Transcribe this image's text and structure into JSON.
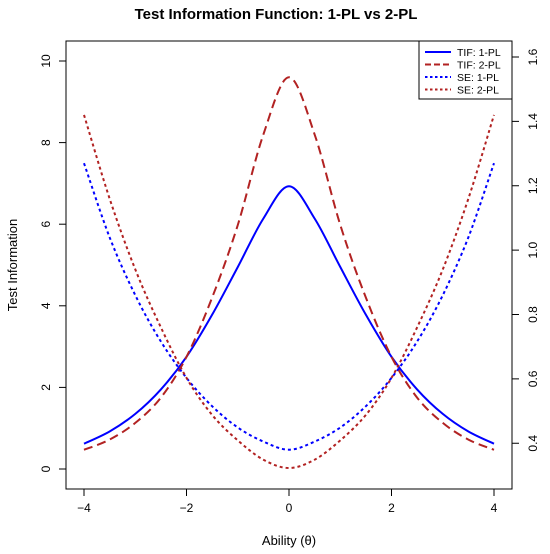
{
  "chart_data": {
    "type": "line",
    "title": "Test Information Function: 1-PL vs 2-PL",
    "xlabel": "Ability (θ)",
    "ylabel": "Test Information",
    "xlim": [
      -4,
      4
    ],
    "ylim": [
      0,
      10
    ],
    "y2lim": [
      0.32,
      1.6
    ],
    "x_ticks": [
      -4,
      -2,
      0,
      2,
      4
    ],
    "x_tick_labels": [
      "−4",
      "−2",
      "0",
      "2",
      "4"
    ],
    "y_ticks": [
      0,
      2,
      4,
      6,
      8,
      10
    ],
    "y2_ticks": [
      0.4,
      0.6,
      0.8,
      1.0,
      1.2,
      1.4,
      1.6
    ],
    "y2_tick_labels": [
      "0.4",
      "0.6",
      "0.8",
      "1.0",
      "1.2",
      "1.4",
      "1.6"
    ],
    "grid": false,
    "legend_position": "top-right",
    "x": [
      -4,
      -3.5,
      -3,
      -2.5,
      -2,
      -1.5,
      -1,
      -0.5,
      0,
      0.5,
      1,
      1.5,
      2,
      2.5,
      3,
      3.5,
      4
    ],
    "series": [
      {
        "name": "TIF: 1-PL",
        "axis": "left",
        "color": "#0000ff",
        "dash": "solid",
        "values": [
          0.62,
          0.92,
          1.35,
          1.95,
          2.75,
          3.78,
          4.95,
          6.14,
          6.93,
          6.14,
          4.95,
          3.78,
          2.75,
          1.95,
          1.35,
          0.92,
          0.62
        ]
      },
      {
        "name": "TIF: 2-PL",
        "axis": "left",
        "color": "#b22222",
        "dash": "dashed",
        "values": [
          0.47,
          0.72,
          1.13,
          1.75,
          2.75,
          4.2,
          5.98,
          8.2,
          9.6,
          8.2,
          5.98,
          4.2,
          2.75,
          1.75,
          1.13,
          0.72,
          0.47
        ]
      },
      {
        "name": "SE: 1-PL",
        "axis": "right",
        "color": "#0000ff",
        "dash": "dotted",
        "values": [
          1.27,
          1.04,
          0.86,
          0.716,
          0.603,
          0.515,
          0.449,
          0.405,
          0.38,
          0.405,
          0.449,
          0.515,
          0.603,
          0.716,
          0.86,
          1.04,
          1.27
        ]
      },
      {
        "name": "SE: 2-PL",
        "axis": "right",
        "color": "#b22222",
        "dash": "dotted",
        "values": [
          1.42,
          1.16,
          0.94,
          0.76,
          0.603,
          0.488,
          0.409,
          0.349,
          0.323,
          0.349,
          0.409,
          0.488,
          0.603,
          0.76,
          0.94,
          1.16,
          1.42
        ]
      }
    ]
  }
}
